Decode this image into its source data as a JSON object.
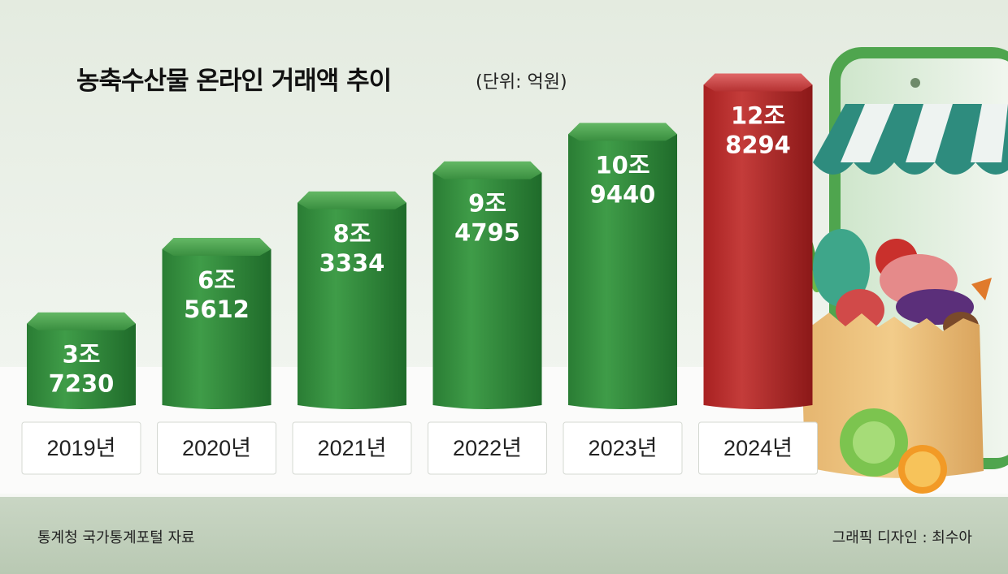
{
  "header": {
    "title": "농축수산물 온라인 거래액 추이",
    "unit": "(단위: 억원)"
  },
  "footer": {
    "source": "통계청 국가통계포털 자료",
    "credit": "그래픽 디자인 : 최수아"
  },
  "colors": {
    "bar_green": "#2f8a3a",
    "bar_highlight": "#b52a2a"
  },
  "chart_data": {
    "type": "bar",
    "title": "농축수산물 온라인 거래액 추이",
    "unit": "(단위: 억원)",
    "categories": [
      "2019년",
      "2020년",
      "2021년",
      "2022년",
      "2023년",
      "2024년"
    ],
    "values": [
      37230,
      65612,
      83334,
      94795,
      109440,
      128294
    ],
    "value_labels": [
      [
        "3조",
        "7230"
      ],
      [
        "6조",
        "5612"
      ],
      [
        "8조",
        "3334"
      ],
      [
        "9조",
        "4795"
      ],
      [
        "10조",
        "9440"
      ],
      [
        "12조",
        "8294"
      ]
    ],
    "highlight_index": 5,
    "ylim": [
      0,
      130000
    ]
  }
}
